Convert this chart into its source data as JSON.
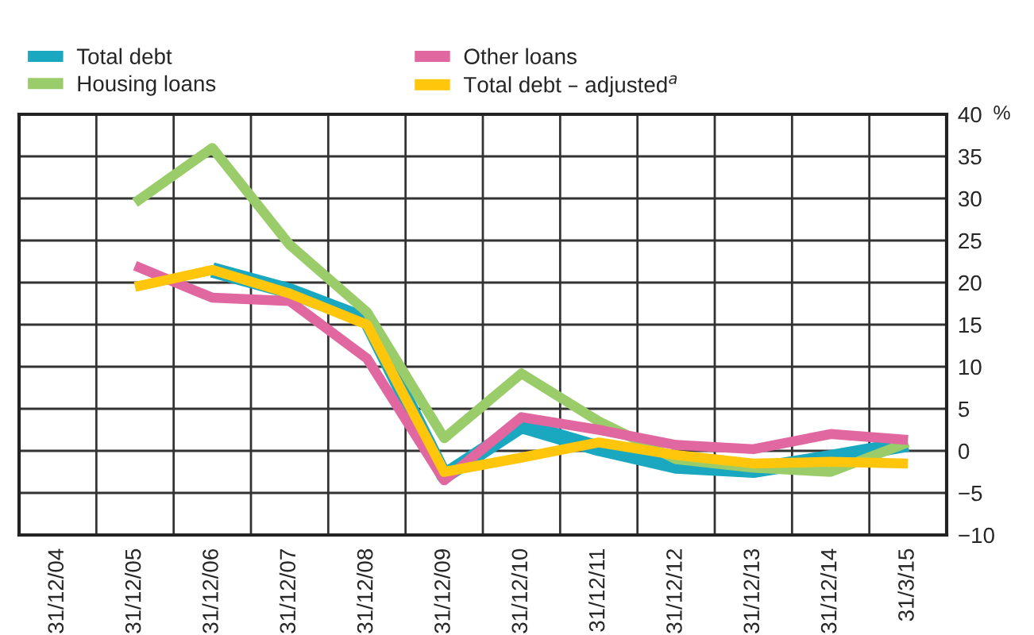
{
  "chart_data": {
    "type": "line",
    "ylabel": "%",
    "categories": [
      "31/12/04",
      "31/12/05",
      "31/12/06",
      "31/12/07",
      "31/12/08",
      "31/12/09",
      "31/12/10",
      "31/12/11",
      "31/12/12",
      "31/12/13",
      "31/12/14",
      "31/3/15"
    ],
    "series": [
      {
        "name": "Total debt",
        "color": "#1aa7c0",
        "values": [
          null,
          null,
          21.5,
          19,
          15.5,
          -3,
          3,
          0.3,
          -1.8,
          -2.3,
          -0.8,
          0.8
        ]
      },
      {
        "name": "Housing loans",
        "color": "#9bcc6a",
        "values": [
          null,
          29.5,
          36,
          24.5,
          16.5,
          1.5,
          9.2,
          3.5,
          -1,
          -2,
          -2.5,
          1
        ]
      },
      {
        "name": "Other loans",
        "color": "#e0679f",
        "values": [
          null,
          22,
          18.2,
          17.8,
          11,
          -3.5,
          4,
          2.5,
          0.7,
          0.2,
          2,
          1.3
        ]
      },
      {
        "name": "Total debt – adjusted$^{a}$",
        "color": "#ffc60b",
        "values": [
          null,
          19.5,
          21.5,
          18.7,
          15,
          -2.5,
          -0.8,
          1,
          -0.5,
          -1.5,
          -1.3,
          -1.5
        ]
      }
    ],
    "ylim": [
      -10,
      40
    ],
    "yticks": [
      {
        "value": -10,
        "label": "−10"
      },
      {
        "value": -5,
        "label": "−5"
      },
      0,
      5,
      10,
      15,
      20,
      25,
      30,
      35,
      40
    ],
    "grid": true,
    "legend": "top left",
    "marker": "none",
    "line_style": "solid"
  }
}
